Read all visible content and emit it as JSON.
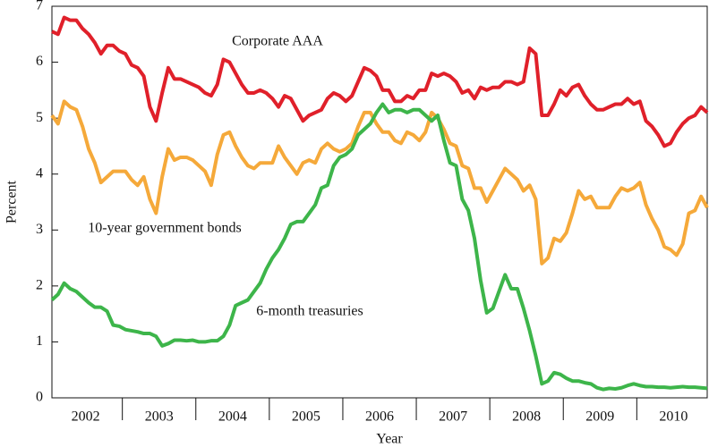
{
  "chart_data": {
    "type": "line",
    "x_label": "Year",
    "y_label": "Percent",
    "categories": [
      null,
      null,
      null,
      null,
      null,
      null,
      "2002",
      null,
      null,
      null,
      null,
      null,
      null,
      null,
      null,
      null,
      null,
      null,
      "2003",
      null,
      null,
      null,
      null,
      null,
      null,
      null,
      null,
      null,
      null,
      null,
      "2004",
      null,
      null,
      null,
      null,
      null,
      null,
      null,
      null,
      null,
      null,
      null,
      "2005",
      null,
      null,
      null,
      null,
      null,
      null,
      null,
      null,
      null,
      null,
      null,
      "2006",
      null,
      null,
      null,
      null,
      null,
      null,
      null,
      null,
      null,
      null,
      null,
      "2007",
      null,
      null,
      null,
      null,
      null,
      null,
      null,
      null,
      null,
      null,
      null,
      "2008",
      null,
      null,
      null,
      null,
      null,
      null,
      null,
      null,
      null,
      null,
      null,
      "2009",
      null,
      null,
      null,
      null,
      null,
      null,
      null,
      null,
      null,
      null,
      null,
      "2010",
      null,
      null,
      null,
      null,
      null
    ],
    "ylim": [
      0,
      7
    ],
    "yticks": [
      0,
      1,
      2,
      3,
      4,
      5,
      6,
      7
    ],
    "series": [
      {
        "name": "Corporate AAA",
        "color": "#e0202a",
        "values": [
          6.55,
          6.5,
          6.8,
          6.75,
          6.75,
          6.6,
          6.5,
          6.35,
          6.15,
          6.3,
          6.3,
          6.2,
          6.15,
          5.95,
          5.9,
          5.75,
          5.2,
          4.95,
          5.45,
          5.9,
          5.7,
          5.7,
          5.65,
          5.6,
          5.55,
          5.45,
          5.4,
          5.6,
          6.05,
          6.0,
          5.8,
          5.6,
          5.45,
          5.45,
          5.5,
          5.45,
          5.35,
          5.2,
          5.4,
          5.35,
          5.15,
          4.95,
          5.05,
          5.1,
          5.15,
          5.35,
          5.45,
          5.4,
          5.3,
          5.4,
          5.65,
          5.9,
          5.85,
          5.75,
          5.5,
          5.5,
          5.3,
          5.3,
          5.4,
          5.35,
          5.5,
          5.5,
          5.8,
          5.75,
          5.8,
          5.75,
          5.65,
          5.45,
          5.5,
          5.35,
          5.55,
          5.5,
          5.55,
          5.55,
          5.65,
          5.65,
          5.6,
          5.65,
          6.25,
          6.15,
          5.05,
          5.05,
          5.25,
          5.5,
          5.4,
          5.55,
          5.6,
          5.4,
          5.25,
          5.15,
          5.15,
          5.2,
          5.25,
          5.25,
          5.35,
          5.25,
          5.3,
          4.95,
          4.85,
          4.7,
          4.5,
          4.55,
          4.75,
          4.9,
          5.0,
          5.05,
          5.2,
          5.1
        ]
      },
      {
        "name": "10-year government bonds",
        "color": "#f5a93a",
        "values": [
          5.05,
          4.9,
          5.3,
          5.2,
          5.15,
          4.85,
          4.45,
          4.2,
          3.85,
          3.95,
          4.05,
          4.05,
          4.05,
          3.9,
          3.8,
          3.95,
          3.55,
          3.3,
          3.95,
          4.45,
          4.25,
          4.3,
          4.3,
          4.25,
          4.15,
          4.05,
          3.8,
          4.35,
          4.7,
          4.75,
          4.5,
          4.3,
          4.15,
          4.1,
          4.2,
          4.2,
          4.2,
          4.5,
          4.3,
          4.15,
          4.0,
          4.2,
          4.25,
          4.2,
          4.45,
          4.55,
          4.45,
          4.4,
          4.45,
          4.55,
          4.85,
          5.1,
          5.1,
          4.9,
          4.75,
          4.75,
          4.6,
          4.55,
          4.75,
          4.7,
          4.6,
          4.75,
          5.1,
          5.0,
          4.8,
          4.55,
          4.5,
          4.15,
          4.1,
          3.75,
          3.75,
          3.5,
          3.7,
          3.9,
          4.1,
          4.0,
          3.9,
          3.7,
          3.8,
          3.55,
          2.4,
          2.5,
          2.85,
          2.8,
          2.95,
          3.3,
          3.7,
          3.55,
          3.6,
          3.4,
          3.4,
          3.4,
          3.6,
          3.75,
          3.7,
          3.75,
          3.85,
          3.45,
          3.2,
          3.0,
          2.7,
          2.65,
          2.55,
          2.75,
          3.3,
          3.35,
          3.6,
          3.4
        ]
      },
      {
        "name": "6-month treasuries",
        "color": "#3db54a",
        "values": [
          1.75,
          1.85,
          2.05,
          1.95,
          1.9,
          1.8,
          1.7,
          1.62,
          1.62,
          1.55,
          1.3,
          1.28,
          1.22,
          1.2,
          1.18,
          1.15,
          1.15,
          1.1,
          0.93,
          0.97,
          1.03,
          1.03,
          1.02,
          1.03,
          1.0,
          1.0,
          1.02,
          1.02,
          1.1,
          1.3,
          1.65,
          1.7,
          1.75,
          1.9,
          2.05,
          2.3,
          2.5,
          2.65,
          2.85,
          3.1,
          3.15,
          3.15,
          3.3,
          3.45,
          3.75,
          3.8,
          4.15,
          4.3,
          4.35,
          4.45,
          4.7,
          4.8,
          4.9,
          5.1,
          5.25,
          5.1,
          5.15,
          5.15,
          5.1,
          5.15,
          5.15,
          5.05,
          4.95,
          5.05,
          4.6,
          4.2,
          4.15,
          3.55,
          3.35,
          2.85,
          2.1,
          1.52,
          1.6,
          1.9,
          2.2,
          1.95,
          1.95,
          1.6,
          1.2,
          0.75,
          0.25,
          0.3,
          0.45,
          0.42,
          0.35,
          0.3,
          0.3,
          0.27,
          0.25,
          0.18,
          0.15,
          0.17,
          0.16,
          0.18,
          0.22,
          0.25,
          0.22,
          0.2,
          0.2,
          0.19,
          0.19,
          0.18,
          0.19,
          0.2,
          0.19,
          0.19,
          0.18,
          0.17
        ]
      }
    ]
  }
}
